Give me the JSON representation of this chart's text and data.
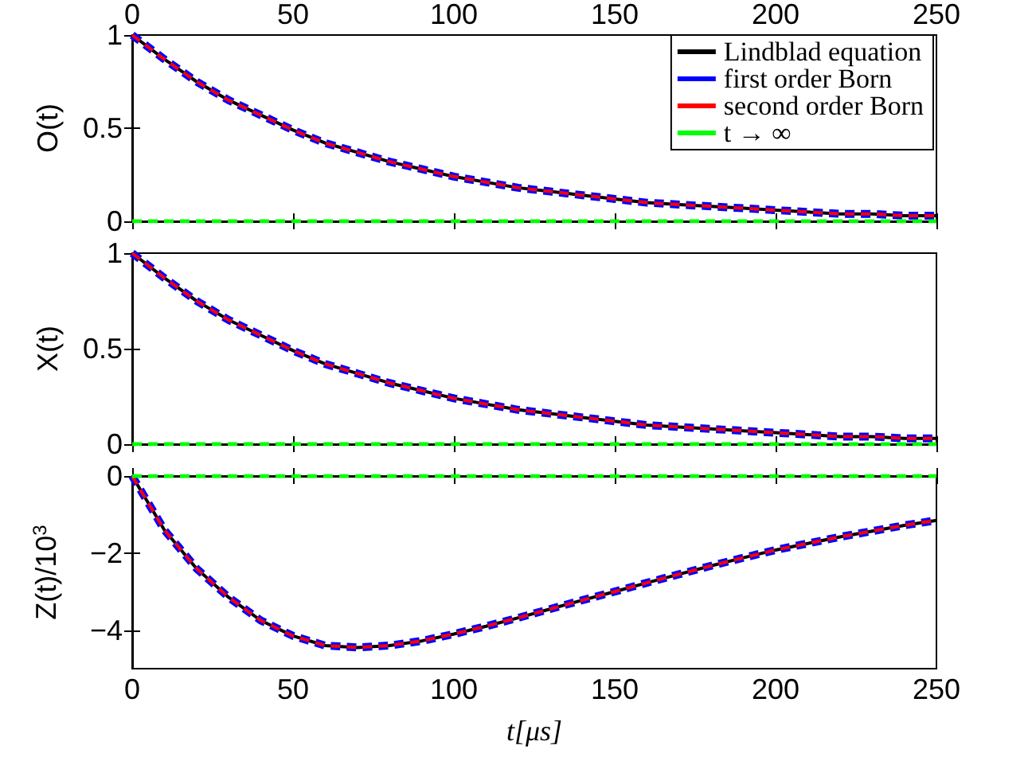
{
  "chart_data": [
    {
      "type": "line",
      "ylabel": "O(t)",
      "x": [
        0,
        10,
        20,
        30,
        40,
        50,
        60,
        70,
        80,
        90,
        100,
        110,
        120,
        130,
        140,
        150,
        160,
        170,
        180,
        190,
        200,
        210,
        220,
        230,
        240,
        250
      ],
      "xlim": [
        0,
        250
      ],
      "xticks": [
        0,
        50,
        100,
        150,
        200,
        250
      ],
      "ylim": [
        0,
        1
      ],
      "yticks": [
        0,
        0.5,
        1
      ],
      "grid": false,
      "legend": "top right",
      "marker": "none",
      "series": [
        {
          "name": "Lindblad equation",
          "color": "#000000",
          "line_style": "solid",
          "values": [
            1,
            0.87,
            0.75,
            0.65,
            0.57,
            0.49,
            0.42,
            0.37,
            0.32,
            0.28,
            0.24,
            0.21,
            0.18,
            0.16,
            0.14,
            0.12,
            0.1,
            0.09,
            0.08,
            0.07,
            0.06,
            0.05,
            0.04,
            0.04,
            0.03,
            0.03
          ]
        },
        {
          "name": "first order Born",
          "color": "#0000ff",
          "line_style": "dashed",
          "values": [
            1,
            0.87,
            0.75,
            0.65,
            0.57,
            0.49,
            0.42,
            0.37,
            0.32,
            0.28,
            0.24,
            0.21,
            0.18,
            0.16,
            0.14,
            0.12,
            0.1,
            0.09,
            0.08,
            0.07,
            0.06,
            0.05,
            0.04,
            0.04,
            0.03,
            0.03
          ]
        },
        {
          "name": "second order Born",
          "color": "#ff0000",
          "line_style": "dashed",
          "values": [
            1,
            0.87,
            0.75,
            0.65,
            0.57,
            0.49,
            0.42,
            0.37,
            0.32,
            0.28,
            0.24,
            0.21,
            0.18,
            0.16,
            0.14,
            0.12,
            0.1,
            0.09,
            0.08,
            0.07,
            0.06,
            0.05,
            0.04,
            0.04,
            0.03,
            0.03
          ]
        },
        {
          "name": "t → ∞",
          "color": "#00ff00",
          "line_style": "dashed",
          "values": [
            0,
            0,
            0,
            0,
            0,
            0,
            0,
            0,
            0,
            0,
            0,
            0,
            0,
            0,
            0,
            0,
            0,
            0,
            0,
            0,
            0,
            0,
            0,
            0,
            0,
            0
          ]
        }
      ]
    },
    {
      "type": "line",
      "ylabel": "X(t)",
      "x": [
        0,
        10,
        20,
        30,
        40,
        50,
        60,
        70,
        80,
        90,
        100,
        110,
        120,
        130,
        140,
        150,
        160,
        170,
        180,
        190,
        200,
        210,
        220,
        230,
        240,
        250
      ],
      "xlim": [
        0,
        250
      ],
      "xticks": [
        0,
        50,
        100,
        150,
        200,
        250
      ],
      "ylim": [
        0,
        1
      ],
      "yticks": [
        0,
        0.5,
        1
      ],
      "grid": false,
      "legend": false,
      "marker": "none",
      "tick_labels": "y",
      "series": [
        {
          "color": "#000000",
          "line_style": "solid",
          "values": [
            1,
            0.87,
            0.75,
            0.65,
            0.57,
            0.49,
            0.42,
            0.37,
            0.32,
            0.28,
            0.24,
            0.21,
            0.18,
            0.16,
            0.14,
            0.12,
            0.1,
            0.09,
            0.08,
            0.07,
            0.06,
            0.05,
            0.04,
            0.04,
            0.03,
            0.03
          ]
        },
        {
          "color": "#0000ff",
          "line_style": "dashed",
          "values": [
            1,
            0.87,
            0.75,
            0.65,
            0.57,
            0.49,
            0.42,
            0.37,
            0.32,
            0.28,
            0.24,
            0.21,
            0.18,
            0.16,
            0.14,
            0.12,
            0.1,
            0.09,
            0.08,
            0.07,
            0.06,
            0.05,
            0.04,
            0.04,
            0.03,
            0.03
          ]
        },
        {
          "color": "#ff0000",
          "line_style": "dashed",
          "values": [
            1,
            0.87,
            0.75,
            0.65,
            0.57,
            0.49,
            0.42,
            0.37,
            0.32,
            0.28,
            0.24,
            0.21,
            0.18,
            0.16,
            0.14,
            0.12,
            0.1,
            0.09,
            0.08,
            0.07,
            0.06,
            0.05,
            0.04,
            0.04,
            0.03,
            0.03
          ]
        },
        {
          "color": "#00ff00",
          "line_style": "dashed",
          "values": [
            0,
            0,
            0,
            0,
            0,
            0,
            0,
            0,
            0,
            0,
            0,
            0,
            0,
            0,
            0,
            0,
            0,
            0,
            0,
            0,
            0,
            0,
            0,
            0,
            0,
            0
          ]
        }
      ]
    },
    {
      "type": "line",
      "ylabel": "Z(t)/10$^{3}$",
      "xlabel": "t[μs]",
      "x": [
        0,
        10,
        20,
        30,
        40,
        50,
        60,
        70,
        80,
        90,
        100,
        110,
        120,
        130,
        140,
        150,
        160,
        170,
        180,
        190,
        200,
        210,
        220,
        230,
        240,
        250
      ],
      "xlim": [
        0,
        250
      ],
      "xticks": [
        0,
        50,
        100,
        150,
        200,
        250
      ],
      "ylim": [
        -5,
        0
      ],
      "yticks": [
        -4,
        -2,
        0
      ],
      "grid": false,
      "legend": false,
      "marker": "none",
      "series": [
        {
          "color": "#000000",
          "line_style": "solid",
          "values": [
            0,
            -1.4,
            -2.4,
            -3.15,
            -3.75,
            -4.15,
            -4.4,
            -4.45,
            -4.4,
            -4.28,
            -4.1,
            -3.9,
            -3.68,
            -3.45,
            -3.22,
            -3.0,
            -2.77,
            -2.55,
            -2.33,
            -2.12,
            -1.92,
            -1.75,
            -1.58,
            -1.43,
            -1.28,
            -1.15
          ]
        },
        {
          "color": "#0000ff",
          "line_style": "dashed",
          "values": [
            0,
            -1.4,
            -2.4,
            -3.15,
            -3.75,
            -4.15,
            -4.4,
            -4.45,
            -4.4,
            -4.28,
            -4.1,
            -3.9,
            -3.68,
            -3.45,
            -3.22,
            -3.0,
            -2.77,
            -2.55,
            -2.33,
            -2.12,
            -1.92,
            -1.75,
            -1.58,
            -1.43,
            -1.28,
            -1.15
          ]
        },
        {
          "color": "#ff0000",
          "line_style": "dashed",
          "values": [
            0,
            -1.4,
            -2.4,
            -3.15,
            -3.75,
            -4.15,
            -4.4,
            -4.45,
            -4.4,
            -4.28,
            -4.1,
            -3.9,
            -3.68,
            -3.45,
            -3.22,
            -3.0,
            -2.77,
            -2.55,
            -2.33,
            -2.12,
            -1.92,
            -1.75,
            -1.58,
            -1.43,
            -1.28,
            -1.15
          ]
        },
        {
          "color": "#00ff00",
          "line_style": "dashed",
          "values": [
            0,
            0,
            0,
            0,
            0,
            0,
            0,
            0,
            0,
            0,
            0,
            0,
            0,
            0,
            0,
            0,
            0,
            0,
            0,
            0,
            0,
            0,
            0,
            0,
            0,
            0
          ]
        }
      ]
    }
  ]
}
